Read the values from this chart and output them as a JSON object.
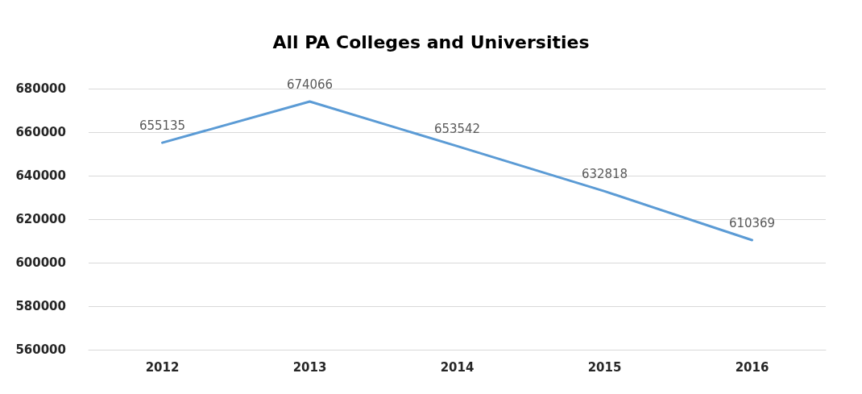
{
  "chart_data": {
    "type": "line",
    "title": "All PA Colleges and Universities",
    "categories": [
      "2012",
      "2013",
      "2014",
      "2015",
      "2016"
    ],
    "series": [
      {
        "color": "#5b9bd5",
        "values": [
          655135,
          674066,
          653542,
          632818,
          610369
        ]
      }
    ],
    "ylim": [
      560000,
      680000
    ],
    "yticks": [
      560000,
      580000,
      600000,
      620000,
      640000,
      660000,
      680000
    ],
    "grid": "y",
    "data_labels": true,
    "marker": "none",
    "line_style": "solid"
  }
}
